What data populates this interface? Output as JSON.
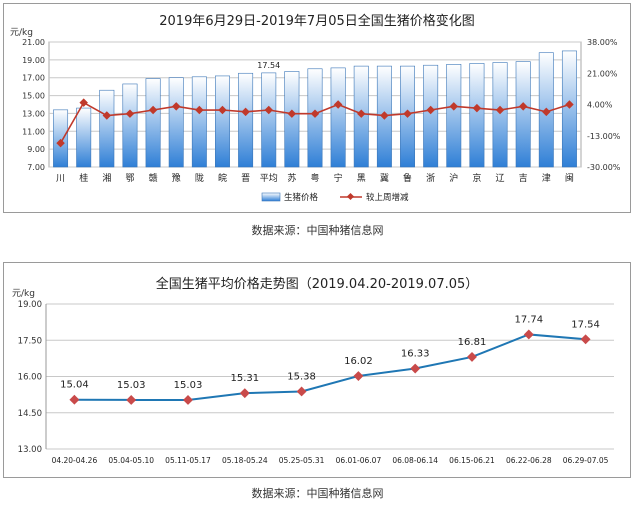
{
  "chart_data": [
    {
      "type": "bar",
      "title": "2019年6月29日-2019年7月05日全国生猪价格变化图",
      "y_unit": "元/kg",
      "categories": [
        "川",
        "桂",
        "湘",
        "鄂",
        "赣",
        "豫",
        "陇",
        "皖",
        "晋",
        "平均",
        "苏",
        "粤",
        "宁",
        "黑",
        "冀",
        "鲁",
        "浙",
        "沪",
        "京",
        "辽",
        "吉",
        "津",
        "闽"
      ],
      "left_axis": {
        "min": 7.0,
        "max": 21.0,
        "ticks": [
          "7.00",
          "9.00",
          "11.00",
          "13.00",
          "15.00",
          "17.00",
          "19.00",
          "21.00"
        ]
      },
      "right_axis": {
        "min": -0.3,
        "max": 0.38,
        "ticks": [
          "-30.00%",
          "-13.00%",
          "4.00%",
          "21.00%",
          "38.00%"
        ]
      },
      "annotations": [
        {
          "text": "17.54",
          "category": "平均"
        }
      ],
      "grid": true,
      "legend_position": "bottom",
      "series": [
        {
          "name": "生猪价格",
          "type": "bar",
          "axis": "left",
          "values": [
            13.4,
            13.6,
            15.6,
            16.3,
            16.9,
            17.0,
            17.1,
            17.2,
            17.5,
            17.54,
            17.7,
            18.0,
            18.1,
            18.3,
            18.3,
            18.3,
            18.4,
            18.5,
            18.6,
            18.7,
            18.8,
            19.8,
            20.0
          ]
        },
        {
          "name": "较上周增减",
          "type": "line",
          "axis": "right",
          "values": [
            -0.17,
            0.05,
            -0.02,
            -0.01,
            0.01,
            0.03,
            0.01,
            0.01,
            0.0,
            0.01,
            -0.01,
            -0.01,
            0.04,
            -0.01,
            -0.02,
            -0.01,
            0.01,
            0.03,
            0.02,
            0.01,
            0.03,
            0.0,
            0.04
          ]
        }
      ]
    },
    {
      "type": "line",
      "title": "全国生猪平均价格走势图（2019.04.20-2019.07.05）",
      "y_unit": "元/kg",
      "categories": [
        "04.20-04.26",
        "05.04-05.10",
        "05.11-05.17",
        "05.18-05.24",
        "05.25-05.31",
        "06.01-06.07",
        "06.08-06.14",
        "06.15-06.21",
        "06.22-06.28",
        "06.29-07.05"
      ],
      "y_axis": {
        "min": 13.0,
        "max": 19.0,
        "ticks": [
          "13.00",
          "14.50",
          "16.00",
          "17.50",
          "19.00"
        ]
      },
      "grid": true,
      "series": [
        {
          "name": "",
          "values": [
            15.04,
            15.03,
            15.03,
            15.31,
            15.38,
            16.02,
            16.33,
            16.81,
            17.74,
            17.54
          ],
          "labels": [
            "15.04",
            "15.03",
            "15.03",
            "15.31",
            "15.38",
            "16.02",
            "16.33",
            "16.81",
            "17.74",
            "17.54"
          ]
        }
      ]
    }
  ],
  "footer": {
    "source1": "数据来源：中国种猪信息网",
    "source2": "数据来源：中国种猪信息网"
  },
  "colors": {
    "bar_light": "#ffffff",
    "bar_dark": "#2f7fd6",
    "line_red": "#c0392b",
    "line_blue": "#1f77b4",
    "marker_red": "#c94a4a",
    "grid": "#c8c8c8"
  }
}
